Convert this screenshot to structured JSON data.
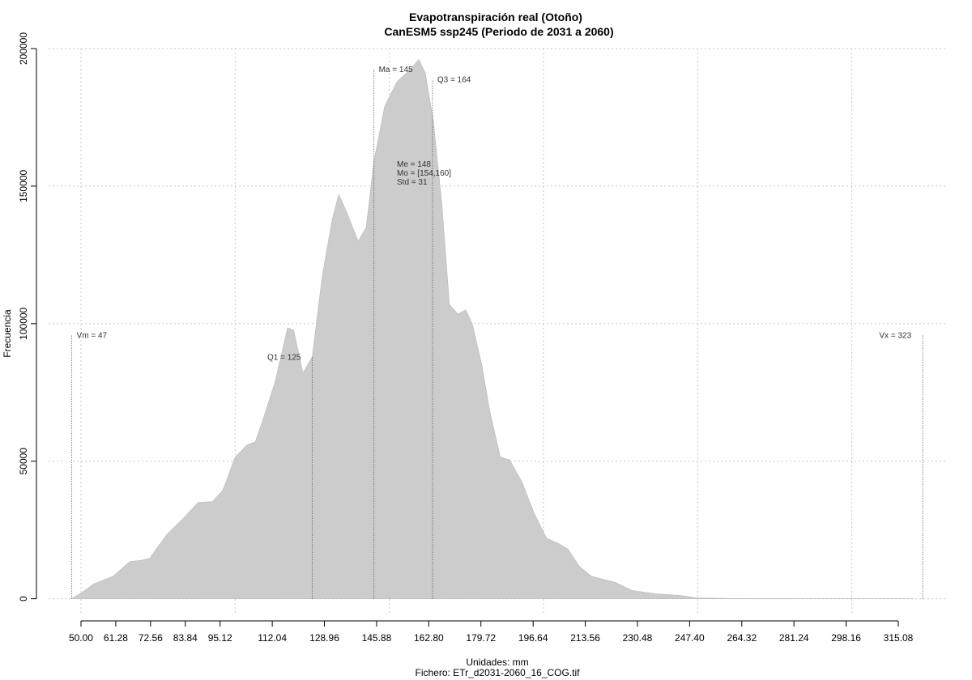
{
  "chart_data": {
    "type": "area",
    "title": "Evapotranspiración real (Otoño)",
    "subtitle": "CanESM5 ssp245 (Periodo de 2031 a 2060)",
    "xlabel": "Unidades: mm",
    "footer": "Fichero: ETr_d2031-2060_16_COG.tif",
    "ylabel": "Frecuencia",
    "color": "#cccccc",
    "grid": true,
    "x": [
      47,
      50,
      54,
      60.5,
      65.8,
      69.7,
      72.3,
      75,
      78,
      83,
      88,
      92.6,
      96,
      100,
      104,
      106.5,
      109,
      113,
      117,
      119,
      122,
      125,
      128.3,
      131.5,
      133.6,
      136.2,
      139.9,
      142.5,
      145,
      148.5,
      152.5,
      156.4,
      159.6,
      161.7,
      164.3,
      167,
      169.5,
      172.2,
      174.8,
      176.9,
      180,
      182.7,
      186,
      189,
      193,
      197,
      201,
      205,
      208,
      211.6,
      215.5,
      223.4,
      228.7,
      236.5,
      244.4,
      249.7,
      260,
      286.5,
      320
    ],
    "y": [
      0,
      2000,
      5300,
      8200,
      13500,
      14000,
      14700,
      19000,
      23500,
      29000,
      35000,
      35300,
      39400,
      51500,
      56000,
      57000,
      65000,
      79000,
      98500,
      97600,
      82000,
      88000,
      117600,
      138000,
      147000,
      140500,
      130000,
      135000,
      159000,
      179000,
      188000,
      192000,
      196000,
      191000,
      173500,
      144000,
      107000,
      103500,
      105000,
      100000,
      85000,
      67500,
      51500,
      50500,
      42500,
      31000,
      22000,
      20000,
      18000,
      11800,
      8200,
      5900,
      3000,
      1800,
      1200,
      300,
      100,
      50,
      0
    ],
    "xlim": [
      39.5,
      331.1
    ],
    "ylim": [
      -6000,
      200000
    ],
    "xticks": [
      {
        "value": 50,
        "label": "50.00"
      },
      {
        "value": 61.28,
        "label": "61.28"
      },
      {
        "value": 72.56,
        "label": "72.56"
      },
      {
        "value": 83.84,
        "label": "83.84"
      },
      {
        "value": 95.12,
        "label": "95.12"
      },
      {
        "value": 112.04,
        "label": "112.04"
      },
      {
        "value": 128.96,
        "label": "128.96"
      },
      {
        "value": 145.88,
        "label": "145.88"
      },
      {
        "value": 162.8,
        "label": "162.80"
      },
      {
        "value": 179.72,
        "label": "179.72"
      },
      {
        "value": 196.64,
        "label": "196.64"
      },
      {
        "value": 213.56,
        "label": "213.56"
      },
      {
        "value": 230.48,
        "label": "230.48"
      },
      {
        "value": 247.4,
        "label": "247.40"
      },
      {
        "value": 264.32,
        "label": "264.32"
      },
      {
        "value": 281.24,
        "label": "281.24"
      },
      {
        "value": 298.16,
        "label": "298.16"
      },
      {
        "value": 315.08,
        "label": "315.08"
      }
    ],
    "yticks": [
      0,
      50000,
      100000,
      150000,
      200000
    ],
    "xgrid": [
      50,
      100,
      150,
      200,
      250,
      300
    ],
    "markers": [
      {
        "label": "Vm = 47",
        "value": 47,
        "y": 96000,
        "side": "right"
      },
      {
        "label": "Q1 = 125",
        "value": 125,
        "y": 88000,
        "side": "left"
      },
      {
        "label": "Ma = 145",
        "value": 145,
        "y": 192600,
        "side": "right"
      },
      {
        "label": "Q3 = 164",
        "value": 164,
        "y": 189000,
        "side": "right"
      },
      {
        "label": "Vx = 323",
        "value": 323,
        "y": 96000,
        "side": "left"
      }
    ],
    "stats": [
      "Me = 148",
      "Mo = [154,160]",
      "Std = 31"
    ]
  }
}
